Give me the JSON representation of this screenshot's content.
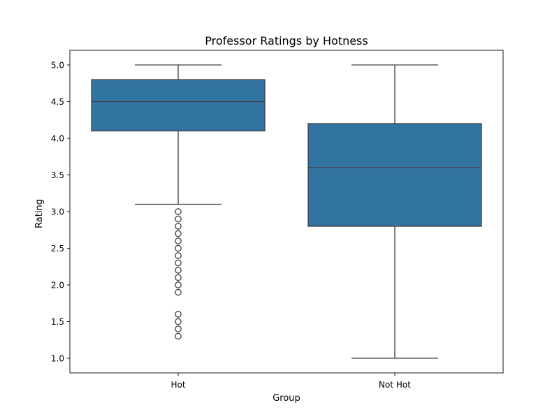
{
  "chart_data": {
    "type": "box",
    "title": "Professor Ratings by Hotness",
    "xlabel": "Group",
    "ylabel": "Rating",
    "ylim": [
      0.8,
      5.2
    ],
    "yticks": [
      1.0,
      1.5,
      2.0,
      2.5,
      3.0,
      3.5,
      4.0,
      4.5,
      5.0
    ],
    "ytick_labels": [
      "1.0",
      "1.5",
      "2.0",
      "2.5",
      "3.0",
      "3.5",
      "4.0",
      "4.5",
      "5.0"
    ],
    "grid": false,
    "legend": "none",
    "box_color": "#3274a1",
    "line_color": "#3f3f3f",
    "categories": [
      "Hot",
      "Not Hot"
    ],
    "boxes": [
      {
        "name": "Hot",
        "whisker_low": 3.1,
        "q1": 4.1,
        "median": 4.5,
        "q3": 4.8,
        "whisker_high": 5.0,
        "outliers": [
          3.0,
          2.9,
          2.8,
          2.7,
          2.6,
          2.5,
          2.4,
          2.3,
          2.2,
          2.1,
          2.0,
          1.9,
          1.6,
          1.5,
          1.4,
          1.3
        ]
      },
      {
        "name": "Not Hot",
        "whisker_low": 1.0,
        "q1": 2.8,
        "median": 3.6,
        "q3": 4.2,
        "whisker_high": 5.0,
        "outliers": []
      }
    ]
  }
}
